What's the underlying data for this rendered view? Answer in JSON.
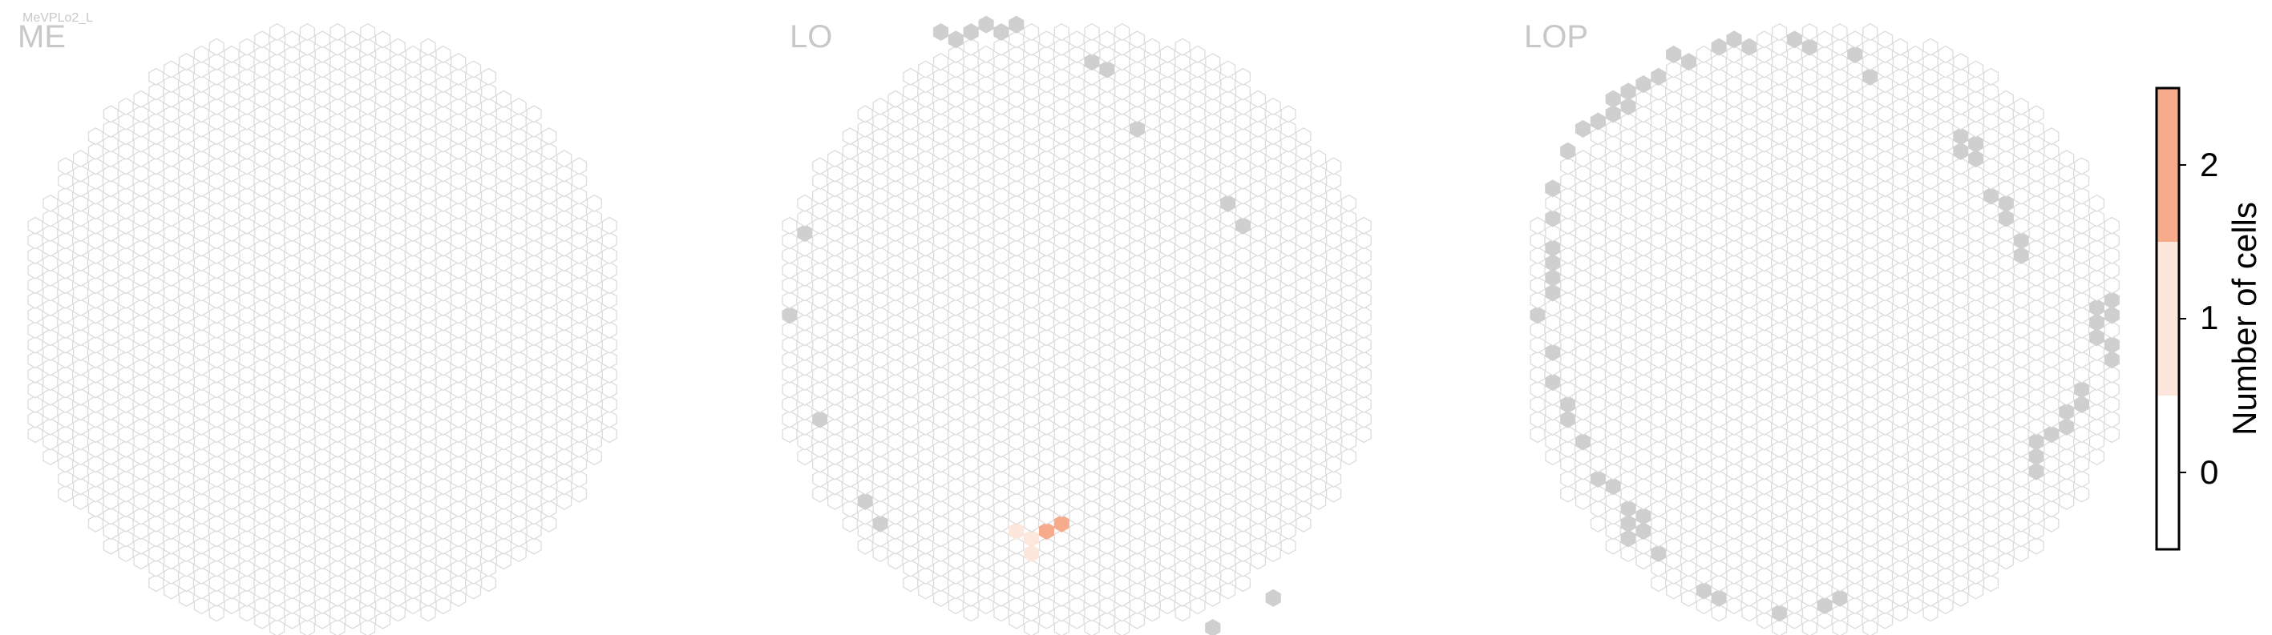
{
  "figure": {
    "title": "MeVPLo2_L",
    "empty_color": "#f1f1f1",
    "edge_color": "#dcdcdc",
    "outside_color": "#cfcfcf"
  },
  "chart_data": [
    {
      "type": "heatmap",
      "subtype": "hexagonal-column-map",
      "panel": "ME",
      "values_nonzero": [],
      "outside_columns": []
    },
    {
      "type": "heatmap",
      "subtype": "hexagonal-column-map",
      "panel": "LO",
      "values_nonzero": [
        {
          "column": [
            15,
            6
          ],
          "value": 1
        },
        {
          "column": [
            16,
            5
          ],
          "value": 1
        },
        {
          "column": [
            16,
            6
          ],
          "value": 1
        },
        {
          "column": [
            17,
            6
          ],
          "value": 2
        },
        {
          "column": [
            18,
            7
          ],
          "value": 2
        }
      ],
      "outside_columns": [
        [
          0,
          21
        ],
        [
          1,
          26
        ],
        [
          2,
          14
        ],
        [
          5,
          8
        ],
        [
          6,
          7
        ],
        [
          10,
          40
        ],
        [
          11,
          39
        ],
        [
          12,
          40
        ],
        [
          13,
          40
        ],
        [
          14,
          40
        ],
        [
          15,
          40
        ],
        [
          20,
          38
        ],
        [
          21,
          37
        ],
        [
          23,
          33
        ],
        [
          28,
          0
        ],
        [
          29,
          28
        ],
        [
          30,
          27
        ],
        [
          32,
          2
        ]
      ]
    },
    {
      "type": "heatmap",
      "subtype": "hexagonal-column-map",
      "panel": "LOP",
      "values_nonzero": [],
      "outside_columns": [
        [
          0,
          21
        ],
        [
          1,
          16
        ],
        [
          1,
          18
        ],
        [
          1,
          22
        ],
        [
          1,
          23
        ],
        [
          1,
          24
        ],
        [
          1,
          25
        ],
        [
          1,
          27
        ],
        [
          1,
          29
        ],
        [
          2,
          14
        ],
        [
          2,
          15
        ],
        [
          2,
          32
        ],
        [
          3,
          12
        ],
        [
          3,
          33
        ],
        [
          4,
          10
        ],
        [
          4,
          34
        ],
        [
          5,
          9
        ],
        [
          5,
          34
        ],
        [
          5,
          35
        ],
        [
          6,
          6
        ],
        [
          6,
          7
        ],
        [
          6,
          8
        ],
        [
          6,
          35
        ],
        [
          6,
          36
        ],
        [
          7,
          6
        ],
        [
          7,
          7
        ],
        [
          7,
          36
        ],
        [
          8,
          5
        ],
        [
          8,
          37
        ],
        [
          9,
          38
        ],
        [
          10,
          38
        ],
        [
          11,
          2
        ],
        [
          12,
          2
        ],
        [
          12,
          39
        ],
        [
          13,
          39
        ],
        [
          14,
          39
        ],
        [
          16,
          1
        ],
        [
          17,
          39
        ],
        [
          18,
          39
        ],
        [
          19,
          1
        ],
        [
          20,
          2
        ],
        [
          21,
          38
        ],
        [
          22,
          37
        ],
        [
          28,
          32
        ],
        [
          28,
          33
        ],
        [
          29,
          31
        ],
        [
          29,
          32
        ],
        [
          30,
          29
        ],
        [
          31,
          28
        ],
        [
          31,
          27
        ],
        [
          32,
          26
        ],
        [
          32,
          25
        ],
        [
          33,
          10
        ],
        [
          33,
          11
        ],
        [
          33,
          12
        ],
        [
          34,
          13
        ],
        [
          35,
          13
        ],
        [
          35,
          14
        ],
        [
          36,
          15
        ],
        [
          36,
          16
        ],
        [
          37,
          19
        ],
        [
          37,
          20
        ],
        [
          37,
          21
        ],
        [
          38,
          18
        ],
        [
          38,
          19
        ],
        [
          38,
          21
        ],
        [
          38,
          22
        ]
      ]
    }
  ],
  "colorbar": {
    "title": "Number of cells",
    "ticks": [
      "0",
      "1",
      "2"
    ],
    "range": [
      -0.5,
      2.5
    ],
    "colors": {
      "0": "#ffffff",
      "1": "#fde7dc",
      "2": "#f6ab8d"
    }
  }
}
